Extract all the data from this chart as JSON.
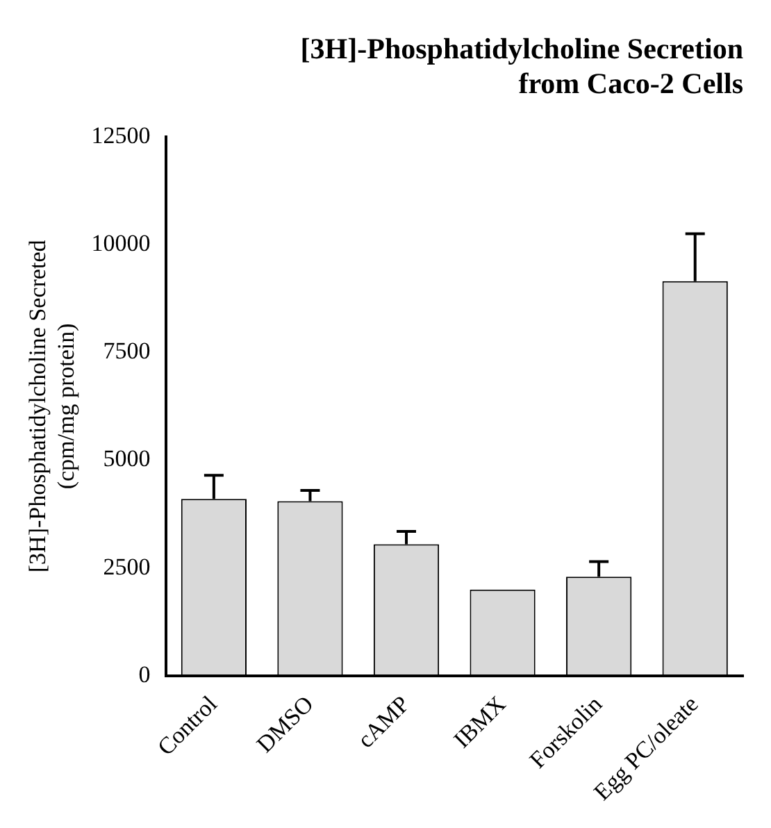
{
  "chart_data": {
    "type": "bar",
    "title": "[3H]-Phosphatidylcholine Secretion\nfrom Caco-2 Cells",
    "ylabel": "[3H]-Phosphatidylcholine Secreted\n(cpm/mg protein)",
    "categories": [
      "Control",
      "DMSO",
      "cAMP",
      "IBMX",
      "Forskolin",
      "Egg PC/oleate"
    ],
    "values": [
      4100,
      4050,
      3050,
      2000,
      2300,
      9150
    ],
    "errors": [
      [
        4100,
        4650
      ],
      [
        4050,
        4300
      ],
      [
        3050,
        3350
      ],
      null,
      [
        2300,
        2650
      ],
      [
        9150,
        10250
      ]
    ],
    "color": "#d9d9d9",
    "ylim": [
      0,
      12500
    ],
    "yticks": [
      0,
      2500,
      5000,
      7500,
      10000,
      12500
    ],
    "grid": false,
    "legend": false
  }
}
